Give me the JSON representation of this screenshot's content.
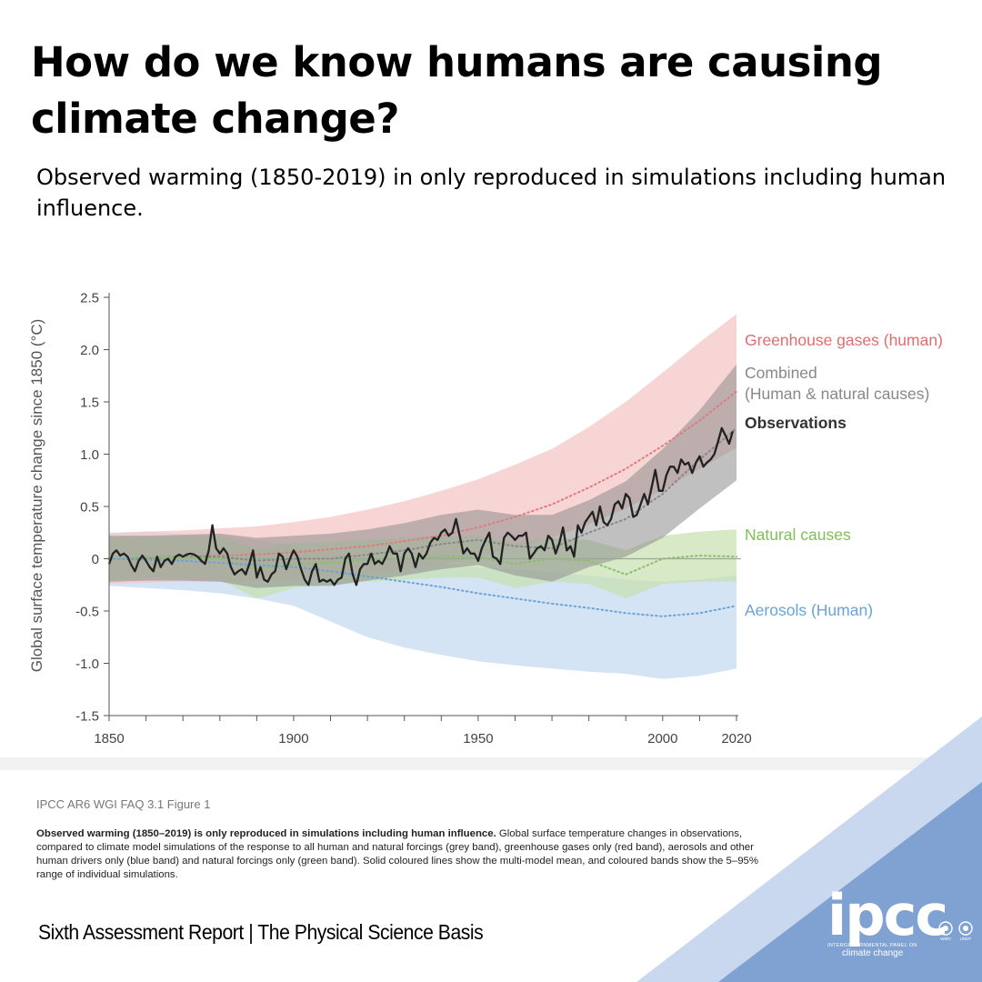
{
  "title": "How do we know humans are causing climate change?",
  "subtitle": "Observed warming (1850-2019) in only reproduced in simulations including human influence.",
  "source": "IPCC AR6 WGI FAQ 3.1 Figure 1",
  "caption_bold": "Observed warming (1850–2019) is only reproduced in simulations including human influence.",
  "caption_text": " Global surface temperature changes in observations, compared to climate model simulations of the response to all human and natural forcings (grey band), greenhouse gases only (red band), aerosols and other human drivers only (blue band) and natural forcings only (green band). Solid coloured lines show the multi-model mean, and coloured bands show the 5–95% range of individual simulations.",
  "footer": "Sixth Assessment Report | The Physical Science Basis",
  "logo": {
    "word": "ipcc",
    "line1": "INTERGOVERNMENTAL PANEL ON",
    "line2": "climate change",
    "emblem_1": "WMO",
    "emblem_2": "UNEP"
  },
  "colors": {
    "ghg": "#e07b7b",
    "combined": "#888888",
    "observations": "#222222",
    "natural": "#8cbf6a",
    "aerosols": "#6aa3d8",
    "corner_light": "#c6d6ec",
    "corner_dark": "#7c9fd0"
  },
  "chart_data": {
    "type": "line",
    "xlim": [
      1850,
      2020
    ],
    "ylim": [
      -1.5,
      2.5
    ],
    "ylabel": "Global surface temperature change since 1850 (°C)",
    "x_ticks": [
      1850,
      1900,
      1950,
      2000,
      2020
    ],
    "y_ticks": [
      "2.5",
      "2.0",
      "1.5",
      "1.0",
      "0.5",
      "0",
      "-0.5",
      "-1.0",
      "-1.5"
    ],
    "labels": {
      "ghg": "Greenhouse gases (human)",
      "combined_1": "Combined",
      "combined_2": "(Human & natural causes)",
      "observations": "Observations",
      "natural": "Natural causes",
      "aerosols": "Aerosols (Human)"
    },
    "years": [
      1850,
      1860,
      1870,
      1880,
      1890,
      1900,
      1910,
      1920,
      1930,
      1940,
      1950,
      1960,
      1970,
      1980,
      1990,
      2000,
      2010,
      2020
    ],
    "observations": [
      [
        1850,
        -0.05
      ],
      [
        1851,
        0.05
      ],
      [
        1852,
        0.08
      ],
      [
        1853,
        0.03
      ],
      [
        1854,
        0.05
      ],
      [
        1855,
        0.02
      ],
      [
        1856,
        -0.06
      ],
      [
        1857,
        -0.12
      ],
      [
        1858,
        -0.02
      ],
      [
        1859,
        0.03
      ],
      [
        1860,
        -0.02
      ],
      [
        1861,
        -0.08
      ],
      [
        1862,
        -0.12
      ],
      [
        1863,
        0.02
      ],
      [
        1864,
        -0.08
      ],
      [
        1865,
        -0.02
      ],
      [
        1866,
        0.0
      ],
      [
        1867,
        -0.05
      ],
      [
        1868,
        0.02
      ],
      [
        1869,
        0.04
      ],
      [
        1870,
        0.02
      ],
      [
        1871,
        0.04
      ],
      [
        1872,
        0.05
      ],
      [
        1873,
        0.04
      ],
      [
        1874,
        0.02
      ],
      [
        1875,
        -0.02
      ],
      [
        1876,
        -0.05
      ],
      [
        1877,
        0.08
      ],
      [
        1878,
        0.32
      ],
      [
        1879,
        0.1
      ],
      [
        1880,
        0.05
      ],
      [
        1881,
        0.1
      ],
      [
        1882,
        0.05
      ],
      [
        1883,
        -0.08
      ],
      [
        1884,
        -0.15
      ],
      [
        1885,
        -0.12
      ],
      [
        1886,
        -0.1
      ],
      [
        1887,
        -0.15
      ],
      [
        1888,
        -0.05
      ],
      [
        1889,
        0.08
      ],
      [
        1890,
        -0.18
      ],
      [
        1891,
        -0.08
      ],
      [
        1892,
        -0.2
      ],
      [
        1893,
        -0.22
      ],
      [
        1894,
        -0.15
      ],
      [
        1895,
        -0.12
      ],
      [
        1896,
        0.05
      ],
      [
        1897,
        0.02
      ],
      [
        1898,
        -0.1
      ],
      [
        1899,
        0.0
      ],
      [
        1900,
        0.08
      ],
      [
        1901,
        0.02
      ],
      [
        1902,
        -0.1
      ],
      [
        1903,
        -0.2
      ],
      [
        1904,
        -0.25
      ],
      [
        1905,
        -0.12
      ],
      [
        1906,
        -0.05
      ],
      [
        1907,
        -0.22
      ],
      [
        1908,
        -0.2
      ],
      [
        1909,
        -0.22
      ],
      [
        1910,
        -0.2
      ],
      [
        1911,
        -0.25
      ],
      [
        1912,
        -0.2
      ],
      [
        1913,
        -0.18
      ],
      [
        1914,
        0.0
      ],
      [
        1915,
        0.05
      ],
      [
        1916,
        -0.15
      ],
      [
        1917,
        -0.25
      ],
      [
        1918,
        -0.1
      ],
      [
        1919,
        -0.05
      ],
      [
        1920,
        -0.05
      ],
      [
        1921,
        0.05
      ],
      [
        1922,
        -0.05
      ],
      [
        1923,
        -0.02
      ],
      [
        1924,
        -0.05
      ],
      [
        1925,
        0.02
      ],
      [
        1926,
        0.12
      ],
      [
        1927,
        0.05
      ],
      [
        1928,
        0.05
      ],
      [
        1929,
        -0.12
      ],
      [
        1930,
        0.05
      ],
      [
        1931,
        0.1
      ],
      [
        1932,
        0.05
      ],
      [
        1933,
        -0.08
      ],
      [
        1934,
        0.05
      ],
      [
        1935,
        0.0
      ],
      [
        1936,
        0.05
      ],
      [
        1937,
        0.15
      ],
      [
        1938,
        0.2
      ],
      [
        1939,
        0.18
      ],
      [
        1940,
        0.25
      ],
      [
        1941,
        0.28
      ],
      [
        1942,
        0.22
      ],
      [
        1943,
        0.25
      ],
      [
        1944,
        0.38
      ],
      [
        1945,
        0.22
      ],
      [
        1946,
        0.05
      ],
      [
        1947,
        0.1
      ],
      [
        1948,
        0.05
      ],
      [
        1949,
        0.05
      ],
      [
        1950,
        -0.02
      ],
      [
        1951,
        0.1
      ],
      [
        1952,
        0.18
      ],
      [
        1953,
        0.25
      ],
      [
        1954,
        0.02
      ],
      [
        1955,
        0.0
      ],
      [
        1956,
        -0.05
      ],
      [
        1957,
        0.2
      ],
      [
        1958,
        0.25
      ],
      [
        1959,
        0.22
      ],
      [
        1960,
        0.18
      ],
      [
        1961,
        0.22
      ],
      [
        1962,
        0.22
      ],
      [
        1963,
        0.25
      ],
      [
        1964,
        0.0
      ],
      [
        1965,
        0.05
      ],
      [
        1966,
        0.1
      ],
      [
        1967,
        0.12
      ],
      [
        1968,
        0.08
      ],
      [
        1969,
        0.22
      ],
      [
        1970,
        0.18
      ],
      [
        1971,
        0.05
      ],
      [
        1972,
        0.15
      ],
      [
        1973,
        0.3
      ],
      [
        1974,
        0.08
      ],
      [
        1975,
        0.12
      ],
      [
        1976,
        0.02
      ],
      [
        1977,
        0.32
      ],
      [
        1978,
        0.25
      ],
      [
        1979,
        0.35
      ],
      [
        1980,
        0.4
      ],
      [
        1981,
        0.45
      ],
      [
        1982,
        0.32
      ],
      [
        1983,
        0.5
      ],
      [
        1984,
        0.35
      ],
      [
        1985,
        0.32
      ],
      [
        1986,
        0.38
      ],
      [
        1987,
        0.52
      ],
      [
        1988,
        0.55
      ],
      [
        1989,
        0.48
      ],
      [
        1990,
        0.62
      ],
      [
        1991,
        0.58
      ],
      [
        1992,
        0.4
      ],
      [
        1993,
        0.42
      ],
      [
        1994,
        0.52
      ],
      [
        1995,
        0.62
      ],
      [
        1996,
        0.52
      ],
      [
        1997,
        0.68
      ],
      [
        1998,
        0.85
      ],
      [
        1999,
        0.65
      ],
      [
        2000,
        0.65
      ],
      [
        2001,
        0.8
      ],
      [
        2002,
        0.88
      ],
      [
        2003,
        0.88
      ],
      [
        2004,
        0.82
      ],
      [
        2005,
        0.95
      ],
      [
        2006,
        0.9
      ],
      [
        2007,
        0.92
      ],
      [
        2008,
        0.82
      ],
      [
        2009,
        0.92
      ],
      [
        2010,
        0.98
      ],
      [
        2011,
        0.88
      ],
      [
        2012,
        0.92
      ],
      [
        2013,
        0.95
      ],
      [
        2014,
        1.0
      ],
      [
        2015,
        1.12
      ],
      [
        2016,
        1.25
      ],
      [
        2017,
        1.18
      ],
      [
        2018,
        1.1
      ],
      [
        2019,
        1.22
      ]
    ],
    "series": [
      {
        "key": "ghg",
        "mean": [
          0.0,
          0.01,
          0.02,
          0.03,
          0.04,
          0.06,
          0.09,
          0.12,
          0.17,
          0.22,
          0.3,
          0.4,
          0.52,
          0.68,
          0.86,
          1.08,
          1.32,
          1.6
        ],
        "upper": [
          0.24,
          0.26,
          0.27,
          0.29,
          0.31,
          0.35,
          0.4,
          0.47,
          0.55,
          0.65,
          0.76,
          0.9,
          1.05,
          1.26,
          1.5,
          1.78,
          2.07,
          2.34
        ],
        "lower": [
          -0.24,
          -0.23,
          -0.22,
          -0.22,
          -0.21,
          -0.2,
          -0.17,
          -0.14,
          -0.1,
          -0.05,
          0.02,
          0.1,
          0.2,
          0.33,
          0.48,
          0.66,
          0.86,
          1.06
        ]
      },
      {
        "key": "combined",
        "mean": [
          0.0,
          0.01,
          0.02,
          0.02,
          -0.02,
          0.0,
          0.0,
          0.04,
          0.08,
          0.14,
          0.18,
          0.12,
          0.1,
          0.25,
          0.38,
          0.62,
          0.95,
          1.25
        ],
        "upper": [
          0.22,
          0.22,
          0.23,
          0.24,
          0.2,
          0.22,
          0.24,
          0.28,
          0.34,
          0.42,
          0.47,
          0.42,
          0.42,
          0.56,
          0.74,
          1.05,
          1.42,
          1.86
        ],
        "lower": [
          -0.22,
          -0.21,
          -0.21,
          -0.22,
          -0.28,
          -0.26,
          -0.26,
          -0.21,
          -0.16,
          -0.1,
          -0.06,
          -0.16,
          -0.22,
          -0.08,
          0.02,
          0.2,
          0.48,
          0.75
        ]
      },
      {
        "key": "natural",
        "mean": [
          0.0,
          0.02,
          0.01,
          0.0,
          -0.1,
          -0.05,
          -0.04,
          -0.01,
          0.0,
          0.02,
          0.02,
          -0.05,
          0.0,
          -0.02,
          -0.15,
          0.0,
          0.03,
          0.02
        ],
        "upper": [
          0.21,
          0.22,
          0.21,
          0.22,
          0.1,
          0.15,
          0.16,
          0.18,
          0.2,
          0.22,
          0.22,
          0.15,
          0.2,
          0.18,
          0.08,
          0.22,
          0.26,
          0.28
        ],
        "lower": [
          -0.21,
          -0.18,
          -0.19,
          -0.2,
          -0.38,
          -0.28,
          -0.25,
          -0.22,
          -0.2,
          -0.18,
          -0.18,
          -0.28,
          -0.22,
          -0.24,
          -0.38,
          -0.24,
          -0.22,
          -0.22
        ]
      },
      {
        "key": "aerosols",
        "mean": [
          0.0,
          -0.01,
          -0.02,
          -0.04,
          -0.06,
          -0.08,
          -0.12,
          -0.17,
          -0.22,
          -0.27,
          -0.33,
          -0.38,
          -0.43,
          -0.47,
          -0.52,
          -0.55,
          -0.52,
          -0.45
        ],
        "upper": [
          0.25,
          0.26,
          0.24,
          0.22,
          0.18,
          0.12,
          0.06,
          0.02,
          -0.02,
          -0.05,
          -0.08,
          -0.1,
          -0.13,
          -0.16,
          -0.2,
          -0.22,
          -0.2,
          -0.16
        ],
        "lower": [
          -0.26,
          -0.28,
          -0.3,
          -0.33,
          -0.38,
          -0.45,
          -0.6,
          -0.75,
          -0.85,
          -0.92,
          -0.98,
          -1.02,
          -1.05,
          -1.08,
          -1.1,
          -1.15,
          -1.12,
          -1.05
        ]
      }
    ]
  }
}
